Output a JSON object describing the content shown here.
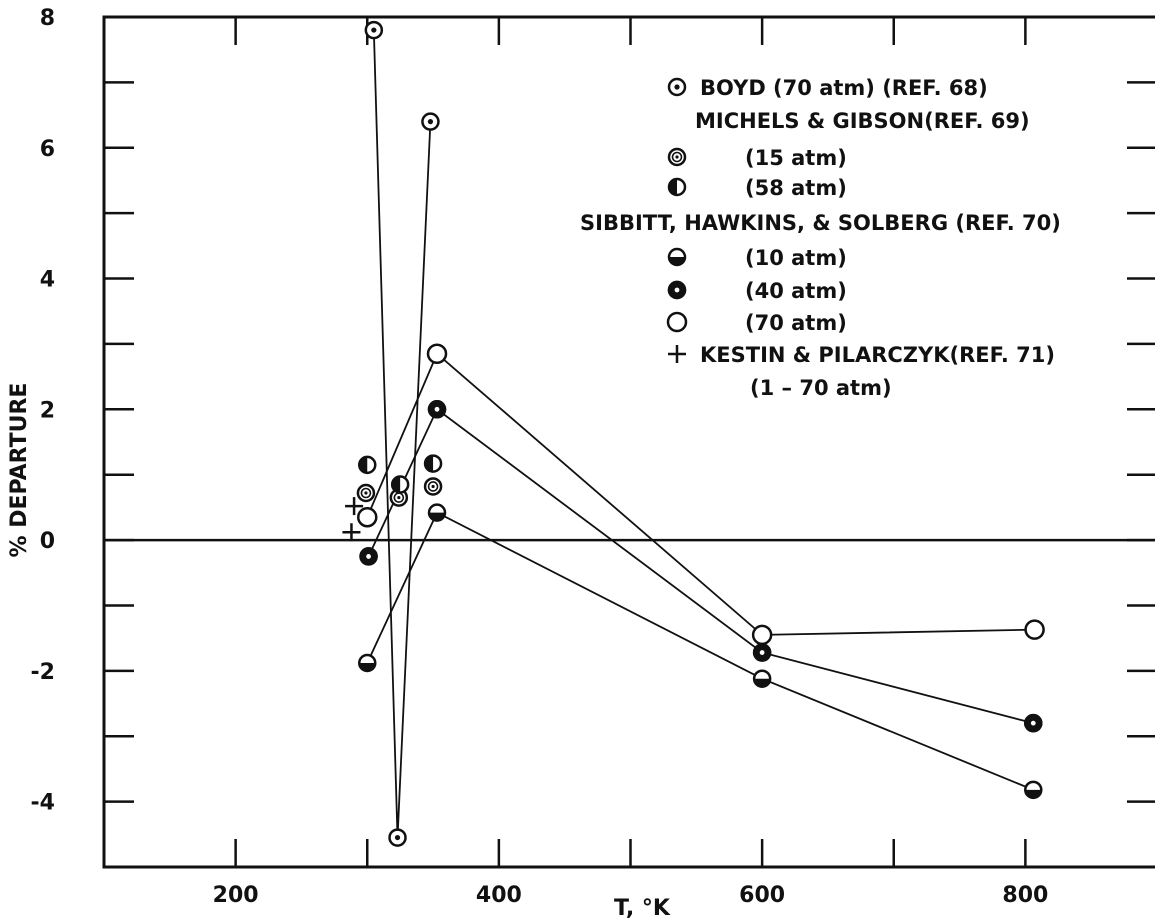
{
  "chart_data": {
    "type": "scatter",
    "xlabel": "T, °K",
    "ylabel": "% DEPARTURE",
    "xlim": [
      100,
      900
    ],
    "ylim": [
      -5,
      8
    ],
    "xticks": [
      200,
      400,
      600,
      800
    ],
    "yticks": [
      8,
      6,
      4,
      2,
      0,
      -2,
      -4
    ],
    "grid": false,
    "zero_line": true,
    "legend_position": "top-right",
    "legend": [
      {
        "marker": "dotcircle",
        "text": "BOYD  (70 atm) (REF. 68)"
      },
      {
        "marker": "none",
        "text": "MICHELS & GIBSON(REF. 69)"
      },
      {
        "marker": "concentric",
        "text": "(15 atm)"
      },
      {
        "marker": "half-left",
        "text": "(58 atm)"
      },
      {
        "marker": "none",
        "text": "SIBBITT, HAWKINS, & SOLBERG (REF. 70)"
      },
      {
        "marker": "half-bottom",
        "text": "(10 atm)"
      },
      {
        "marker": "ring-solid",
        "text": "(40 atm)"
      },
      {
        "marker": "open",
        "text": "(70 atm)"
      },
      {
        "marker": "plus",
        "text": "KESTIN & PILARCZYK(REF. 71)"
      },
      {
        "marker": "none",
        "text": "(1 – 70 atm)"
      }
    ],
    "series": [
      {
        "name": "BOYD (70 atm)",
        "marker": "dotcircle",
        "connected": true,
        "x": [
          305,
          323,
          348
        ],
        "y": [
          7.8,
          -4.55,
          6.4
        ]
      },
      {
        "name": "MICHELS & GIBSON (15 atm)",
        "marker": "concentric",
        "connected": false,
        "x": [
          299,
          324,
          350
        ],
        "y": [
          0.72,
          0.65,
          0.82
        ]
      },
      {
        "name": "MICHELS & GIBSON (58 atm)",
        "marker": "half-left",
        "connected": false,
        "x": [
          300,
          325,
          350
        ],
        "y": [
          1.15,
          0.85,
          1.17
        ]
      },
      {
        "name": "SIBBITT, HAWKINS, & SOLBERG (10 atm)",
        "marker": "half-bottom",
        "connected": true,
        "x": [
          300,
          353,
          600,
          806
        ],
        "y": [
          -1.88,
          0.42,
          -2.12,
          -3.82
        ]
      },
      {
        "name": "SIBBITT, HAWKINS, & SOLBERG (40 atm)",
        "marker": "ring-solid",
        "connected": true,
        "x": [
          301,
          353,
          600,
          806
        ],
        "y": [
          -0.25,
          2.0,
          -1.72,
          -2.8
        ]
      },
      {
        "name": "SIBBITT, HAWKINS, & SOLBERG (70 atm)",
        "marker": "open",
        "connected": true,
        "x": [
          300,
          353,
          600,
          807
        ],
        "y": [
          0.35,
          2.85,
          -1.45,
          -1.37
        ]
      },
      {
        "name": "KESTIN & PILARCZYK (1-70 atm)",
        "marker": "plus",
        "connected": false,
        "x": [
          288,
          290
        ],
        "y": [
          0.12,
          0.52
        ]
      }
    ]
  }
}
